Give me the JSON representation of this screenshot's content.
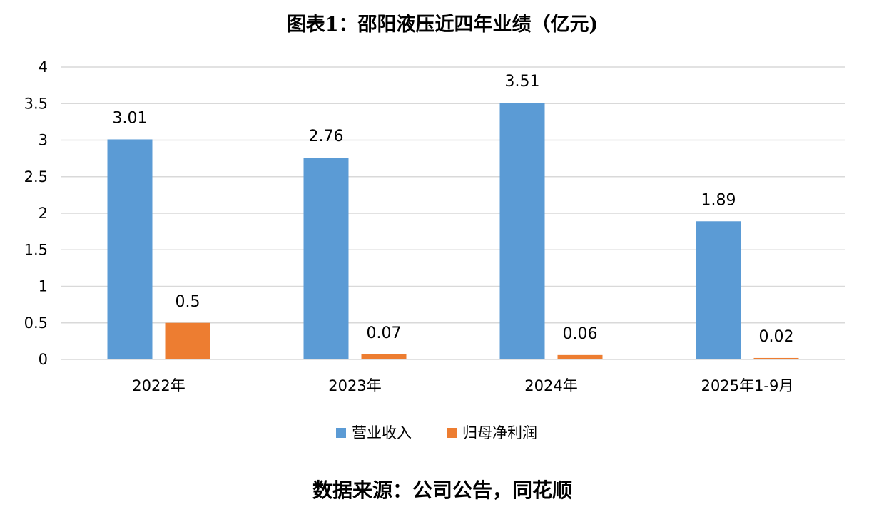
{
  "chart_data": {
    "type": "bar",
    "title": "图表1：邵阳液压近四年业绩（亿元)",
    "categories": [
      "2022年",
      "2023年",
      "2024年",
      "2025年1-9月"
    ],
    "series": [
      {
        "name": "营业收入",
        "values": [
          3.01,
          2.76,
          3.51,
          1.89
        ],
        "labels": [
          "3.01",
          "2.76",
          "3.51",
          "1.89"
        ],
        "color": "#5b9bd5"
      },
      {
        "name": "归母净利润",
        "values": [
          0.5,
          0.07,
          0.06,
          0.02
        ],
        "labels": [
          "0.5",
          "0.07",
          "0.06",
          "0.02"
        ],
        "color": "#ed7d31"
      }
    ],
    "ylim": [
      0,
      4
    ],
    "yticks": [
      "0",
      "0.5",
      "1",
      "1.5",
      "2",
      "2.5",
      "3",
      "3.5",
      "4"
    ],
    "xlabel": "",
    "ylabel": "",
    "grid": true,
    "legend_position": "bottom"
  },
  "footer": {
    "source": "数据来源：公司公告，同花顺"
  }
}
